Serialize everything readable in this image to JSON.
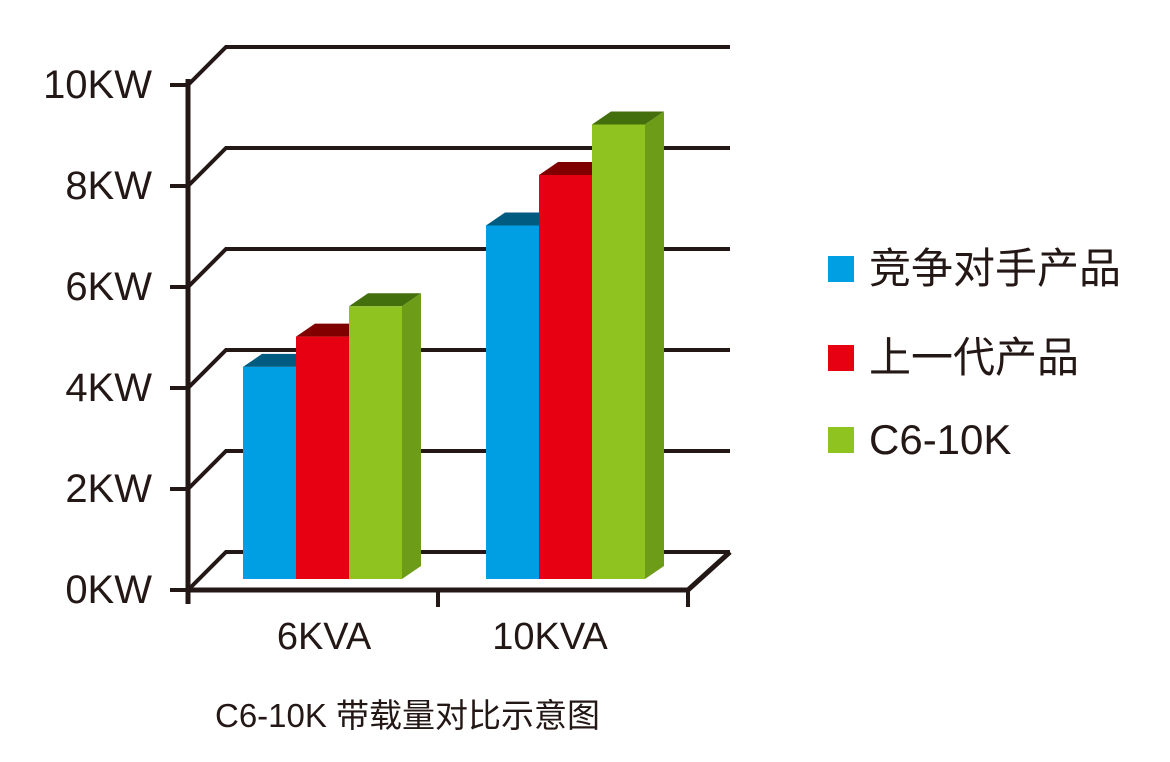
{
  "title": "C6-10K 带载量对比示意图",
  "chart_data": {
    "type": "bar",
    "projection": "3d-oblique",
    "title": "C6-10K 带载量对比示意图",
    "categories": [
      "6KVA",
      "10KVA"
    ],
    "series": [
      {
        "key": "competitor",
        "name": "竞争对手产品",
        "color": "#009FE3",
        "color_top": "#005B80",
        "color_side": "#0077A9",
        "values": [
          4.2,
          7
        ]
      },
      {
        "key": "previous-gen",
        "name": "上一代产品",
        "color": "#E60012",
        "color_top": "#800000",
        "color_side": "#B00010",
        "values": [
          4.8,
          8
        ]
      },
      {
        "key": "c6-10k",
        "name": "C6-10K",
        "color": "#8FC31F",
        "color_top": "#446F0D",
        "color_side": "#6D9C18",
        "values": [
          5.4,
          9
        ]
      }
    ],
    "yticks": [
      {
        "value": 0,
        "label": "0KW"
      },
      {
        "value": 2,
        "label": "2KW"
      },
      {
        "value": 4,
        "label": "4KW"
      },
      {
        "value": 6,
        "label": "6KW"
      },
      {
        "value": 8,
        "label": "8KW"
      },
      {
        "value": 10,
        "label": "10KW"
      }
    ],
    "ylim": [
      0,
      10
    ],
    "xlabel": "",
    "ylabel": "",
    "grid": true,
    "legend_position": "right",
    "axis_color": "#231815",
    "text_color": "#231815",
    "background_color": "#ffffff"
  }
}
